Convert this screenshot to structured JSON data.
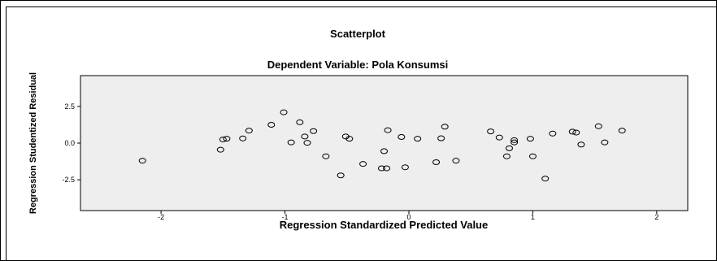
{
  "chart_data": {
    "type": "scatter",
    "title": "Scatterplot",
    "subtitle": "Dependent Variable: Pola Konsumsi",
    "xlabel": "Regression Standardized Predicted Value",
    "ylabel": "Regression Studentized Residual",
    "xlim": [
      -2.65,
      2.25
    ],
    "ylim": [
      -4.6,
      4.6
    ],
    "xticks": [
      -2,
      -1,
      0,
      1,
      2
    ],
    "xtick_labels": [
      "-2",
      "-1",
      "0",
      "1",
      "2"
    ],
    "yticks": [
      2.5,
      0.0,
      -2.5
    ],
    "ytick_labels": [
      "2.5",
      "0.0",
      "-2.5"
    ],
    "grid": false,
    "plot_background": "#eeeeee",
    "marker": "open-circle",
    "marker_color": "#000000",
    "points": [
      {
        "x": -2.15,
        "y": -1.2
      },
      {
        "x": -1.52,
        "y": -0.45
      },
      {
        "x": -1.5,
        "y": 0.25
      },
      {
        "x": -1.47,
        "y": 0.3
      },
      {
        "x": -1.34,
        "y": 0.32
      },
      {
        "x": -1.29,
        "y": 0.85
      },
      {
        "x": -1.11,
        "y": 1.25
      },
      {
        "x": -1.01,
        "y": 2.1
      },
      {
        "x": -0.95,
        "y": 0.05
      },
      {
        "x": -0.88,
        "y": 1.42
      },
      {
        "x": -0.84,
        "y": 0.45
      },
      {
        "x": -0.82,
        "y": 0.02
      },
      {
        "x": -0.77,
        "y": 0.82
      },
      {
        "x": -0.67,
        "y": -0.9
      },
      {
        "x": -0.55,
        "y": -2.2
      },
      {
        "x": -0.51,
        "y": 0.45
      },
      {
        "x": -0.48,
        "y": 0.3
      },
      {
        "x": -0.37,
        "y": -1.42
      },
      {
        "x": -0.22,
        "y": -1.72
      },
      {
        "x": -0.2,
        "y": -0.55
      },
      {
        "x": -0.18,
        "y": -1.72
      },
      {
        "x": -0.17,
        "y": 0.88
      },
      {
        "x": -0.06,
        "y": 0.42
      },
      {
        "x": -0.03,
        "y": -1.65
      },
      {
        "x": 0.07,
        "y": 0.3
      },
      {
        "x": 0.22,
        "y": -1.3
      },
      {
        "x": 0.26,
        "y": 0.33
      },
      {
        "x": 0.29,
        "y": 1.12
      },
      {
        "x": 0.38,
        "y": -1.2
      },
      {
        "x": 0.66,
        "y": 0.8
      },
      {
        "x": 0.73,
        "y": 0.38
      },
      {
        "x": 0.79,
        "y": -0.9
      },
      {
        "x": 0.81,
        "y": -0.35
      },
      {
        "x": 0.85,
        "y": 0.05
      },
      {
        "x": 0.85,
        "y": 0.2
      },
      {
        "x": 0.98,
        "y": 0.3
      },
      {
        "x": 1.0,
        "y": -0.9
      },
      {
        "x": 1.1,
        "y": -2.42
      },
      {
        "x": 1.16,
        "y": 0.65
      },
      {
        "x": 1.32,
        "y": 0.78
      },
      {
        "x": 1.35,
        "y": 0.72
      },
      {
        "x": 1.39,
        "y": -0.1
      },
      {
        "x": 1.53,
        "y": 1.15
      },
      {
        "x": 1.58,
        "y": 0.05
      },
      {
        "x": 1.72,
        "y": 0.85
      }
    ]
  }
}
